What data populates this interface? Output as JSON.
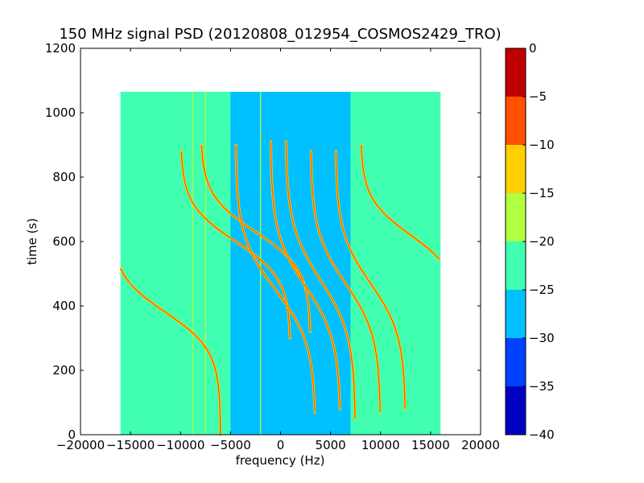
{
  "chart_data": {
    "type": "heatmap",
    "title": "150 MHz signal PSD (20120808_012954_COSMOS2429_TRO)",
    "xlabel": "frequency (Hz)",
    "ylabel": "time (s)",
    "xlim": [
      -20000,
      20000
    ],
    "ylim": [
      0,
      1200
    ],
    "xticks": [
      -20000,
      -15000,
      -10000,
      -5000,
      0,
      5000,
      10000,
      15000,
      20000
    ],
    "xtick_labels": [
      "−20000",
      "−15000",
      "−10000",
      "−5000",
      "0",
      "5000",
      "10000",
      "15000",
      "20000"
    ],
    "yticks": [
      0,
      200,
      400,
      600,
      800,
      1000,
      1200
    ],
    "ytick_labels": [
      "0",
      "200",
      "400",
      "600",
      "800",
      "1000",
      "1200"
    ],
    "data_extent": {
      "x": [
        -16000,
        16000
      ],
      "y": [
        0,
        1065
      ]
    },
    "background_level": -22.5,
    "central_band": {
      "x": [
        -5000,
        7000
      ],
      "level": -27.5
    },
    "traces": [
      {
        "center_x": -11500,
        "center_y": 380,
        "amplitude_x": 5500,
        "span_y": [
          0,
          590
        ]
      },
      {
        "center_x": -4500,
        "center_y": 600,
        "amplitude_x": 5500,
        "span_y": [
          300,
          880
        ]
      },
      {
        "center_x": -2500,
        "center_y": 630,
        "amplitude_x": 5500,
        "span_y": [
          320,
          900
        ]
      },
      {
        "center_x": -500,
        "center_y": 450,
        "amplitude_x": 4000,
        "span_y": [
          70,
          900
        ]
      },
      {
        "center_x": 2500,
        "center_y": 460,
        "amplitude_x": 3500,
        "span_y": [
          80,
          910
        ]
      },
      {
        "center_x": 4000,
        "center_y": 480,
        "amplitude_x": 3500,
        "span_y": [
          50,
          910
        ]
      },
      {
        "center_x": 6500,
        "center_y": 470,
        "amplitude_x": 3500,
        "span_y": [
          70,
          880
        ]
      },
      {
        "center_x": 9000,
        "center_y": 470,
        "amplitude_x": 3500,
        "span_y": [
          80,
          880
        ]
      },
      {
        "center_x": 13000,
        "center_y": 620,
        "amplitude_x": 5000,
        "span_y": [
          330,
          900
        ]
      }
    ],
    "vertical_lines_x": [
      -8800,
      -7500,
      -2000
    ],
    "colorbar": {
      "range": [
        -40,
        0
      ],
      "ticks": [
        0,
        -5,
        -10,
        -15,
        -20,
        -25,
        -30,
        -35,
        -40
      ],
      "tick_labels": [
        "0",
        "−5",
        "−10",
        "−15",
        "−20",
        "−25",
        "−30",
        "−35",
        "−40"
      ],
      "levels": [
        {
          "from": -40,
          "to": -35,
          "color": "#0000c0"
        },
        {
          "from": -35,
          "to": -30,
          "color": "#0040ff"
        },
        {
          "from": -30,
          "to": -25,
          "color": "#00c0ff"
        },
        {
          "from": -25,
          "to": -20,
          "color": "#40ffb0"
        },
        {
          "from": -20,
          "to": -15,
          "color": "#b0ff40"
        },
        {
          "from": -15,
          "to": -10,
          "color": "#ffd000"
        },
        {
          "from": -10,
          "to": -5,
          "color": "#ff5000"
        },
        {
          "from": -5,
          "to": 0,
          "color": "#c00000"
        }
      ]
    }
  }
}
